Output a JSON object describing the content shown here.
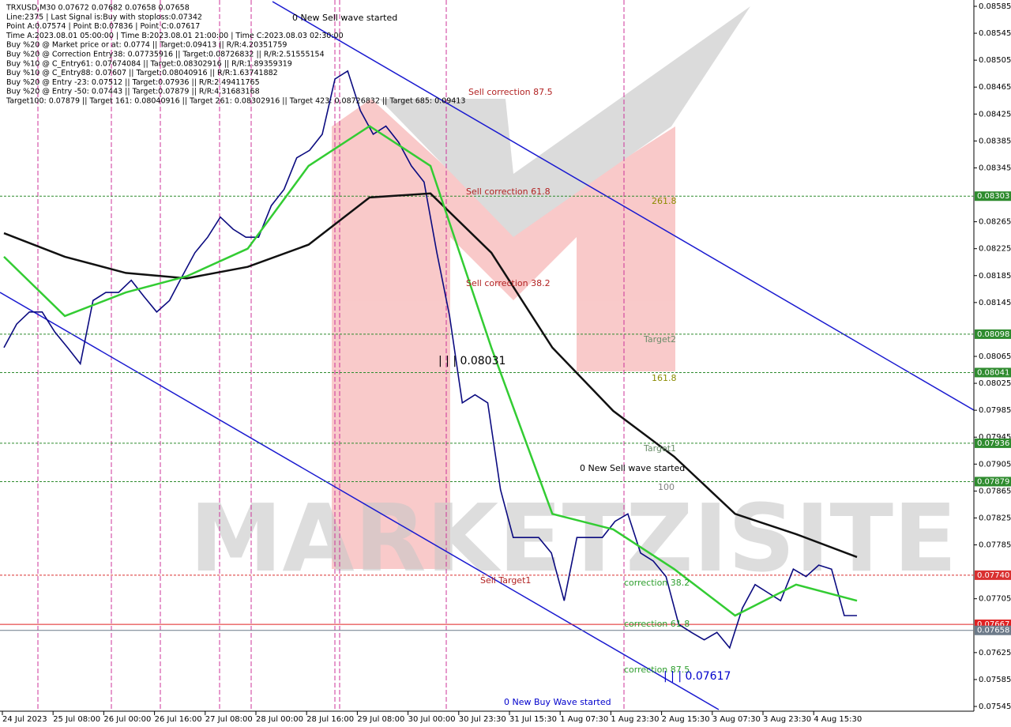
{
  "chart_data": {
    "type": "line",
    "info": [
      "TRXUSD,M30  0.07672 0.07682 0.07658 0.07658",
      "Line:2375  | Last Signal is:Buy with stoploss:0.07342",
      "Point A:0.07574 | Point B:0.07836 | Point C:0.07617",
      "Time A:2023.08.01 05:00:00 | Time B:2023.08.01 21:00:00 | Time C:2023.08.03 02:30:00",
      "Buy %20 @ Market price or at: 0.0774 || Target:0.09413 || R/R:4.20351759",
      "Buy %20 @ Correction Entry38: 0.07735916 || Target:0.08726832 || R/R:2.51555154",
      "Buy %10 @ C_Entry61: 0.07674084 || Target:0.08302916 || R/R:1.89359319",
      "Buy %10 @ C_Entry88: 0.07607 || Target:0.08040916 || R/R:1.63741882",
      "Buy %20 @ Entry -23: 0.07512 || Target:0.07936 || R/R:2.49411765",
      "Buy %20 @ Entry -50: 0.07443 || Target:0.07879 || R/R:4.31683168",
      "Target100: 0.07879 || Target 161: 0.08040916 || Target 261: 0.08302916 || Target 423: 0.08726832 || Target 685: 0.09413"
    ],
    "x_labels": [
      "24 Jul 2023",
      "25 Jul 08:00",
      "26 Jul 00:00",
      "26 Jul 16:00",
      "27 Jul 08:00",
      "28 Jul 00:00",
      "28 Jul 16:00",
      "29 Jul 08:00",
      "30 Jul 00:00",
      "30 Jul 23:30",
      "31 Jul 15:30",
      "1 Aug 07:30",
      "1 Aug 23:30",
      "2 Aug 15:30",
      "3 Aug 07:30",
      "3 Aug 23:30",
      "4 Aug 15:30"
    ],
    "ylim": [
      0.07545,
      0.08585
    ],
    "yticks": [
      0.08585,
      0.08545,
      0.08505,
      0.08465,
      0.08425,
      0.08385,
      0.08345,
      0.08265,
      0.08225,
      0.08185,
      0.08145,
      0.08065,
      0.08025,
      0.07985,
      0.07945,
      0.07905,
      0.07865,
      0.07825,
      0.07785,
      0.07705,
      0.07625,
      0.07585,
      0.07545
    ],
    "series": [
      {
        "color": "#0b0b80",
        "values": [
          0.08078,
          0.08113,
          0.08131,
          0.08131,
          0.08101,
          0.08078,
          0.08054,
          0.08148,
          0.0816,
          0.0816,
          0.08178,
          0.08154,
          0.08131,
          0.08148,
          0.08184,
          0.08219,
          0.08242,
          0.08272,
          0.08254,
          0.08242,
          0.08242,
          0.08289,
          0.08313,
          0.0836,
          0.08371,
          0.08395,
          0.08477,
          0.08489,
          0.0843,
          0.08395,
          0.08407,
          0.08383,
          0.08348,
          0.08324,
          0.08219,
          0.08125,
          0.07996,
          0.08008,
          0.07996,
          0.07867,
          0.07796,
          0.07796,
          0.07796,
          0.07773,
          0.07702,
          0.07796,
          0.07796,
          0.07796,
          0.0782,
          0.07831,
          0.07773,
          0.07761,
          0.07738,
          0.07667,
          0.07655,
          0.07644,
          0.07655,
          0.07632,
          0.07691,
          0.07726,
          0.07714,
          0.07702,
          0.07749,
          0.07738,
          0.07755,
          0.07749,
          0.0768,
          0.0768
        ]
      },
      {
        "color": "#111111",
        "values": [
          0.08248,
          0.08213,
          0.08189,
          0.08181,
          0.08198,
          0.08231,
          0.08301,
          0.08307,
          0.08219,
          0.08078,
          0.07984,
          0.07916,
          0.07831,
          0.07801,
          0.07767
        ]
      },
      {
        "color": "#33cc33",
        "values": [
          0.08213,
          0.08125,
          0.0816,
          0.08184,
          0.08225,
          0.08348,
          0.08407,
          0.08348,
          0.08078,
          0.07831,
          0.07808,
          0.07749,
          0.0768,
          0.07726,
          0.07702
        ]
      }
    ],
    "levels": [
      {
        "value": 0.08303,
        "color": "#2e8b2e"
      },
      {
        "value": 0.08098,
        "color": "#2e8b2e"
      },
      {
        "value": 0.08041,
        "color": "#2e8b2e"
      },
      {
        "value": 0.07936,
        "color": "#2e8b2e"
      },
      {
        "value": 0.07879,
        "color": "#2e8b2e"
      },
      {
        "value": 0.0774,
        "label": "0.07740",
        "color": "#d93030"
      },
      {
        "value": 0.07667,
        "color": "#e02020"
      },
      {
        "value": 0.07658,
        "color": "#6c7a89"
      }
    ],
    "annotations": [
      {
        "text": "0 New Sell wave started",
        "color": "#000000"
      },
      {
        "text": "Sell correction 87.5",
        "color": "#b22222"
      },
      {
        "text": "Sell correction 61.8",
        "color": "#b22222"
      },
      {
        "text": "Sell correction 38.2",
        "color": "#b22222"
      },
      {
        "text": "261.8",
        "color": "#8b8b00"
      },
      {
        "text": "Target2",
        "color": "#6b8e6b"
      },
      {
        "text": "161.8",
        "color": "#8b8b00"
      },
      {
        "text": "Target1",
        "color": "#6b8e6b"
      },
      {
        "text": "0 New Sell wave started",
        "color": "#000000"
      },
      {
        "text": "100",
        "color": "#808080"
      },
      {
        "text": "Sell Target1",
        "color": "#b22222"
      },
      {
        "text": "correction 38.2",
        "color": "#2e9e2e"
      },
      {
        "text": "correction 61.8",
        "color": "#2e9e2e"
      },
      {
        "text": "correction 87.5",
        "color": "#2e9e2e"
      },
      {
        "text": "0 New Buy Wave started",
        "color": "#0000cc"
      },
      {
        "text": "| | | 0.08031",
        "color": "#000000"
      },
      {
        "text": "| | | 0.07617",
        "color": "#0000cc"
      }
    ],
    "watermark": "MARKETZISITE"
  }
}
